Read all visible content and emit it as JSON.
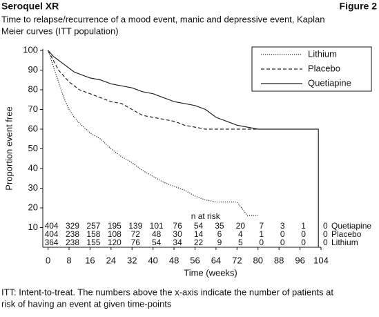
{
  "chart_data": {
    "type": "line",
    "header_left": "Seroquel XR",
    "header_right": "Figure 2",
    "subtitle_lines": [
      "Time to relapse/recurrence of a mood event, manic and depressive event, Kaplan",
      "Meier curves (ITT population)"
    ],
    "x_label": "Time (weeks)",
    "y_label": "Proportion event free",
    "xlim": [
      -2,
      104
    ],
    "ylim": [
      0,
      100
    ],
    "xticks": [
      0,
      8,
      16,
      24,
      32,
      40,
      48,
      56,
      64,
      72,
      80,
      88,
      96,
      104
    ],
    "yticks": [
      10,
      20,
      30,
      40,
      50,
      60,
      70,
      80,
      90,
      100
    ],
    "series": [
      {
        "name": "Lithium",
        "color": "#222",
        "dash": "dotted",
        "x": [
          0,
          2,
          4,
          6,
          8,
          10,
          12,
          16,
          20,
          24,
          28,
          32,
          36,
          40,
          44,
          48,
          52,
          56,
          60,
          64,
          72,
          76,
          80
        ],
        "values": [
          100,
          92,
          84,
          76,
          70,
          66,
          63,
          58,
          55,
          50,
          46,
          43,
          39,
          36,
          33,
          31,
          29,
          26,
          24,
          23,
          23,
          16,
          16
        ]
      },
      {
        "name": "Placebo",
        "color": "#222",
        "dash": "dashed",
        "x": [
          0,
          2,
          4,
          6,
          8,
          12,
          16,
          20,
          24,
          28,
          32,
          36,
          40,
          44,
          48,
          52,
          56,
          60,
          80
        ],
        "values": [
          100,
          95,
          90,
          87,
          84,
          80,
          78,
          76,
          74,
          73,
          70,
          67,
          66,
          65,
          64,
          62,
          61,
          60,
          60
        ]
      },
      {
        "name": "Quetiapine",
        "color": "#222",
        "dash": "solid",
        "x": [
          0,
          2,
          4,
          6,
          8,
          10,
          12,
          16,
          20,
          24,
          28,
          32,
          36,
          40,
          44,
          48,
          52,
          56,
          60,
          64,
          68,
          72,
          76,
          80,
          103,
          103
        ],
        "values": [
          100,
          97,
          95,
          93,
          91,
          89,
          88,
          86,
          85,
          83,
          82,
          81,
          79,
          78,
          76,
          74,
          73,
          72,
          70,
          66,
          64,
          62,
          61,
          60,
          60,
          0
        ]
      }
    ],
    "at_risk": {
      "label": "n at risk",
      "rows": [
        {
          "name": "Quetiapine",
          "values": [
            404,
            329,
            257,
            195,
            139,
            101,
            76,
            54,
            35,
            20,
            7,
            3,
            1,
            0
          ]
        },
        {
          "name": "Placebo",
          "values": [
            404,
            238,
            158,
            108,
            72,
            48,
            30,
            14,
            6,
            4,
            1,
            0,
            0,
            0
          ]
        },
        {
          "name": "Lithium",
          "values": [
            364,
            238,
            155,
            120,
            76,
            54,
            34,
            22,
            9,
            5,
            0,
            0,
            0,
            0
          ]
        }
      ]
    },
    "footnote_lines": [
      "ITT: Intent-to-treat. The numbers above the x-axis indicate the number of patients at",
      "risk of having an event at given time-points"
    ]
  }
}
